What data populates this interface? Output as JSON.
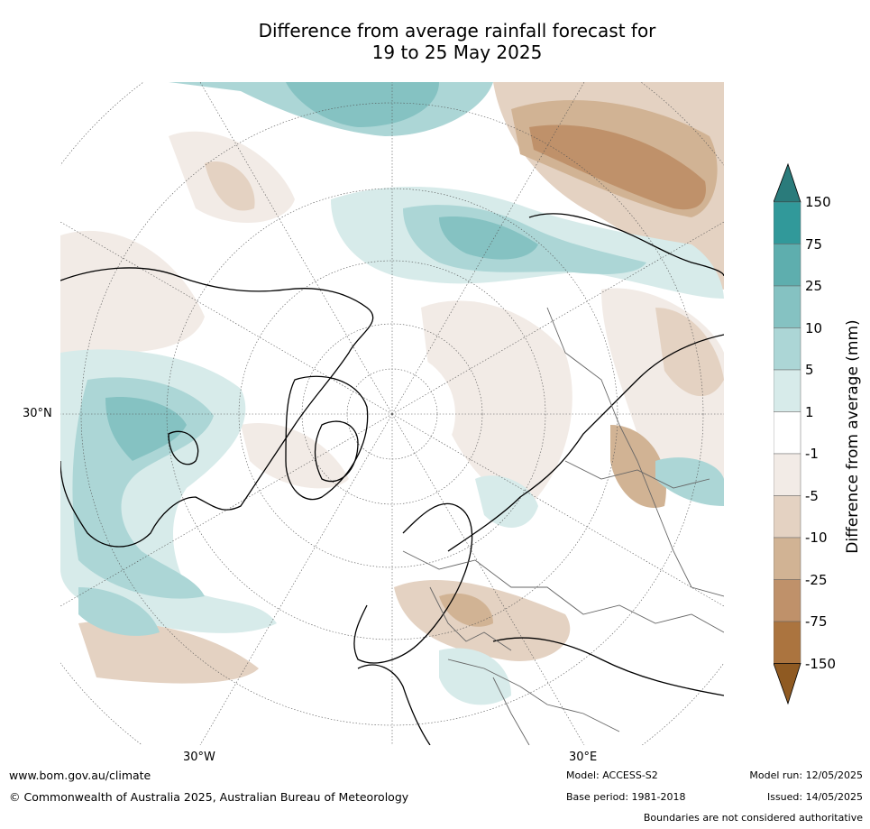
{
  "title_line1": "Difference from average rainfall forecast for",
  "title_line2": "19 to 25 May 2025",
  "map": {
    "projection": "north polar stereographic",
    "label_lat": "30°N",
    "label_lon_w": "30°W",
    "label_lon_e": "30°E"
  },
  "colorbar": {
    "label": "Difference from average (mm)",
    "ticks": [
      "150",
      "75",
      "25",
      "10",
      "5",
      "1",
      "-1",
      "-5",
      "-10",
      "-25",
      "-75",
      "-150"
    ],
    "colors": {
      "wet_extend": "#2a7b7b",
      "wet_75_150": "#31999a",
      "wet_25_75": "#5eaeae",
      "wet_10_25": "#85c2c2",
      "wet_5_10": "#acd6d6",
      "wet_1_5": "#d7ebea",
      "neutral": "#ffffff",
      "dry_1_5": "#f2ebe6",
      "dry_5_10": "#e4d2c2",
      "dry_10_25": "#d1b394",
      "dry_25_75": "#bf916a",
      "dry_75_150": "#ab743f",
      "dry_extend": "#8f5a22"
    }
  },
  "footer": {
    "website": "www.bom.gov.au/climate",
    "copyright": "© Commonwealth of Australia 2025, Australian Bureau of Meteorology",
    "model": "Model: ACCESS-S2",
    "base_period": "Base period: 1981-2018",
    "model_run": "Model run: 12/05/2025",
    "issued": "Issued: 14/05/2025",
    "boundaries_note": "Boundaries are not considered authoritative"
  }
}
